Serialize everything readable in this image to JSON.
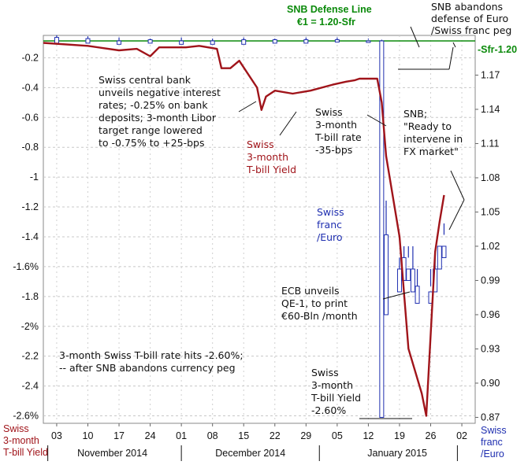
{
  "chart_data": {
    "type": "line",
    "title": "",
    "x": {
      "ticks": [
        "03",
        "10",
        "17",
        "24",
        "01",
        "08",
        "15",
        "22",
        "29",
        "05",
        "12",
        "19",
        "26",
        "02"
      ],
      "months": [
        "November 2014",
        "December 2014",
        "January 2015"
      ],
      "range": [
        "2014-10-31",
        "2015-02-05"
      ]
    },
    "left_axis": {
      "label_lines": [
        "Swiss",
        "3-month",
        "T-bill Yield"
      ],
      "range": [
        -2.65,
        -0.05
      ],
      "ticks": [
        "-0.2",
        "-0.4",
        "-0.6",
        "-0.8",
        "-1",
        "-1.2",
        "-1.4",
        "-1.6%",
        "-1.8",
        "-2%",
        "-2.2",
        "-2.4",
        "-2.6%"
      ]
    },
    "right_axis": {
      "label_lines": [
        "Swiss",
        "franc",
        "/Euro"
      ],
      "range": [
        0.8648,
        1.2048
      ],
      "ticks": [
        "1.17",
        "1.14",
        "1.11",
        "1.08",
        "1.05",
        "1.02",
        "0.99",
        "0.96",
        "0.93",
        "0.90",
        "0.87"
      ]
    },
    "reference_line": {
      "label": "-Sfr-1.20",
      "value": 1.2
    },
    "grid": true,
    "series": [
      {
        "name": "Swiss 3-month T-bill Yield",
        "label_lines": [
          "Swiss",
          "3-month",
          "T-bill Yield"
        ],
        "color": "#a0141a",
        "axis": "left",
        "points": [
          [
            "2014-10-31",
            -0.1
          ],
          [
            "2014-11-10",
            -0.12
          ],
          [
            "2014-11-17",
            -0.15
          ],
          [
            "2014-11-21",
            -0.14
          ],
          [
            "2014-11-24",
            -0.19
          ],
          [
            "2014-11-26",
            -0.13
          ],
          [
            "2014-12-02",
            -0.13
          ],
          [
            "2014-12-05",
            -0.12
          ],
          [
            "2014-12-09",
            -0.14
          ],
          [
            "2014-12-10",
            -0.27
          ],
          [
            "2014-12-12",
            -0.27
          ],
          [
            "2014-12-14",
            -0.22
          ],
          [
            "2014-12-18",
            -0.4
          ],
          [
            "2014-12-19",
            -0.55
          ],
          [
            "2014-12-20",
            -0.46
          ],
          [
            "2014-12-22",
            -0.42
          ],
          [
            "2014-12-26",
            -0.44
          ],
          [
            "2014-12-30",
            -0.42
          ],
          [
            "2015-01-04",
            -0.38
          ],
          [
            "2015-01-07",
            -0.36
          ],
          [
            "2015-01-09",
            -0.35
          ],
          [
            "2015-01-10",
            -0.34
          ],
          [
            "2015-01-14",
            -0.34
          ],
          [
            "2015-01-15",
            -0.5
          ],
          [
            "2015-01-16",
            -0.86
          ],
          [
            "2015-01-19",
            -1.4
          ],
          [
            "2015-01-21",
            -2.15
          ],
          [
            "2015-01-24",
            -2.45
          ],
          [
            "2015-01-25",
            -2.6
          ],
          [
            "2015-01-27",
            -1.5
          ],
          [
            "2015-01-28",
            -1.3
          ],
          [
            "2015-01-29",
            -1.12
          ]
        ]
      },
      {
        "name": "Swiss franc /Euro",
        "label_lines": [
          "Swiss",
          "franc",
          "/Euro"
        ],
        "color": "#1f2fb0",
        "axis": "right",
        "ohlc": [
          [
            "2014-11-03",
            1.205,
            1.2,
            1.198,
            1.203
          ],
          [
            "2014-11-10",
            1.204,
            1.2,
            1.198,
            1.202
          ],
          [
            "2014-11-17",
            1.203,
            1.199,
            1.197,
            1.2
          ],
          [
            "2014-11-24",
            1.202,
            1.199,
            1.198,
            1.201
          ],
          [
            "2014-12-01",
            1.203,
            1.198,
            1.197,
            1.2
          ],
          [
            "2014-12-08",
            1.202,
            1.2,
            1.197,
            1.2
          ],
          [
            "2014-12-15",
            1.203,
            1.2,
            1.197,
            1.201
          ],
          [
            "2014-12-22",
            1.202,
            1.2,
            1.198,
            1.201
          ],
          [
            "2014-12-29",
            1.203,
            1.2,
            1.198,
            1.201
          ],
          [
            "2015-01-05",
            1.203,
            1.2,
            1.199,
            1.201
          ],
          [
            "2015-01-12",
            1.202,
            1.201,
            1.199,
            1.2
          ],
          [
            "2015-01-15",
            1.201,
            0.99,
            0.87,
            1.2
          ],
          [
            "2015-01-16",
            1.06,
            0.98,
            0.96,
            1.03
          ],
          [
            "2015-01-19",
            1.01,
            0.99,
            0.98,
            1.0
          ],
          [
            "2015-01-20",
            1.02,
            1.0,
            0.99,
            1.01
          ],
          [
            "2015-01-21",
            1.02,
            1.01,
            0.99,
            1.0
          ],
          [
            "2015-01-22",
            1.02,
            0.99,
            0.98,
            1.0
          ],
          [
            "2015-01-23",
            1.0,
            0.975,
            0.97,
            0.985
          ],
          [
            "2015-01-26",
            1.0,
            0.985,
            0.97,
            0.98
          ],
          [
            "2015-01-27",
            1.01,
            0.985,
            0.98,
            1.0
          ],
          [
            "2015-01-28",
            1.02,
            1.01,
            1.0,
            1.02
          ],
          [
            "2015-01-29",
            1.04,
            1.03,
            1.01,
            1.02
          ]
        ]
      }
    ]
  },
  "annotations": {
    "defense_line": [
      "SNB Defense Line",
      "€1 = 1.20-Sfr"
    ],
    "abandons": [
      "SNB abandons",
      "defense of Euro",
      "/Swiss franc peg"
    ],
    "negative_rates": [
      "Swiss central bank",
      "unveils negative interest",
      "rates; -0.25% on bank",
      "deposits; 3-month Libor",
      "target range lowered",
      "to -0.75% to +25-bps"
    ],
    "tbill_35": [
      "Swiss",
      "3-month",
      "T-bill rate",
      "-35-bps"
    ],
    "snb_ready": [
      "SNB;",
      "\"Ready to",
      "intervene in",
      "FX market\""
    ],
    "ecb": [
      "ECB unveils",
      "QE-1, to print",
      "€60-Bln /month"
    ],
    "hits_260": [
      "3-month Swiss T-bill rate hits -2.60%;",
      "-- after SNB abandons currency peg"
    ],
    "tbill_low": [
      "Swiss",
      "3-month",
      "T-bill Yield",
      "-2.60%"
    ]
  }
}
